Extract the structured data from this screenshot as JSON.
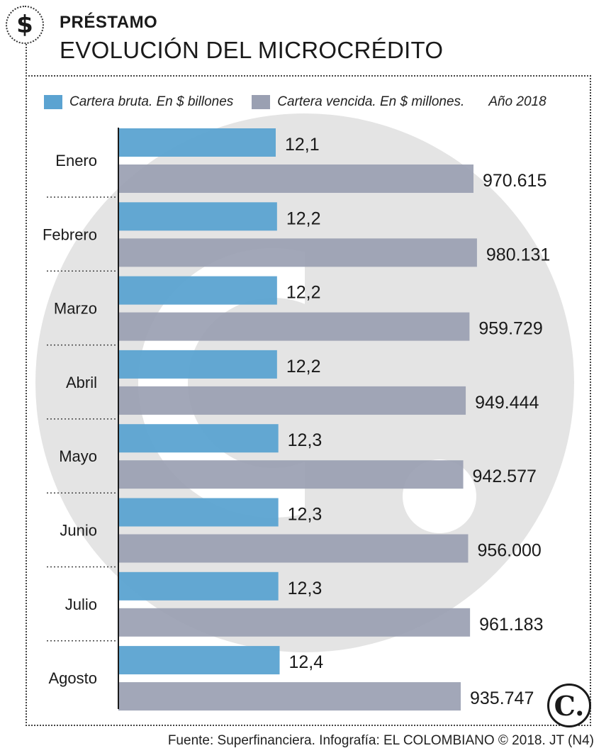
{
  "header": {
    "icon": "dollar-sign-icon",
    "icon_glyph": "$",
    "kicker": "PRÉSTAMO",
    "title": "EVOLUCIÓN DEL MICROCRÉDITO"
  },
  "legend": {
    "gross_label": "Cartera bruta. En $ billones",
    "overdue_label": "Cartera vencida. En $ millones.",
    "year": "Año 2018"
  },
  "colors": {
    "gross": "#5ba3d1",
    "overdue": "#9aa0b2",
    "watermark": "#e4e4e4"
  },
  "chart_data": {
    "type": "bar",
    "orientation": "horizontal",
    "categories": [
      "Enero",
      "Febrero",
      "Marzo",
      "Abril",
      "Mayo",
      "Junio",
      "Julio",
      "Agosto"
    ],
    "series": [
      {
        "name": "Cartera bruta. En $ billones",
        "values": [
          12.1,
          12.2,
          12.2,
          12.2,
          12.3,
          12.3,
          12.3,
          12.4
        ],
        "labels": [
          "12,1",
          "12,2",
          "12,2",
          "12,2",
          "12,3",
          "12,3",
          "12,3",
          "12,4"
        ]
      },
      {
        "name": "Cartera vencida. En $ millones.",
        "values": [
          970615,
          980131,
          959729,
          949444,
          942577,
          956000,
          961183,
          935747
        ],
        "labels": [
          "970.615",
          "980.131",
          "959.729",
          "949.444",
          "942.577",
          "956.000",
          "961.183",
          "935.747"
        ]
      }
    ],
    "grid": false,
    "legend_position": "top-left"
  },
  "logo": {
    "icon": "el-colombiano-logo-icon",
    "glyph": "C."
  },
  "footer": {
    "source": "Fuente: Superfinanciera. Infografía: EL COLOMBIANO © 2018. JT (N4)"
  }
}
